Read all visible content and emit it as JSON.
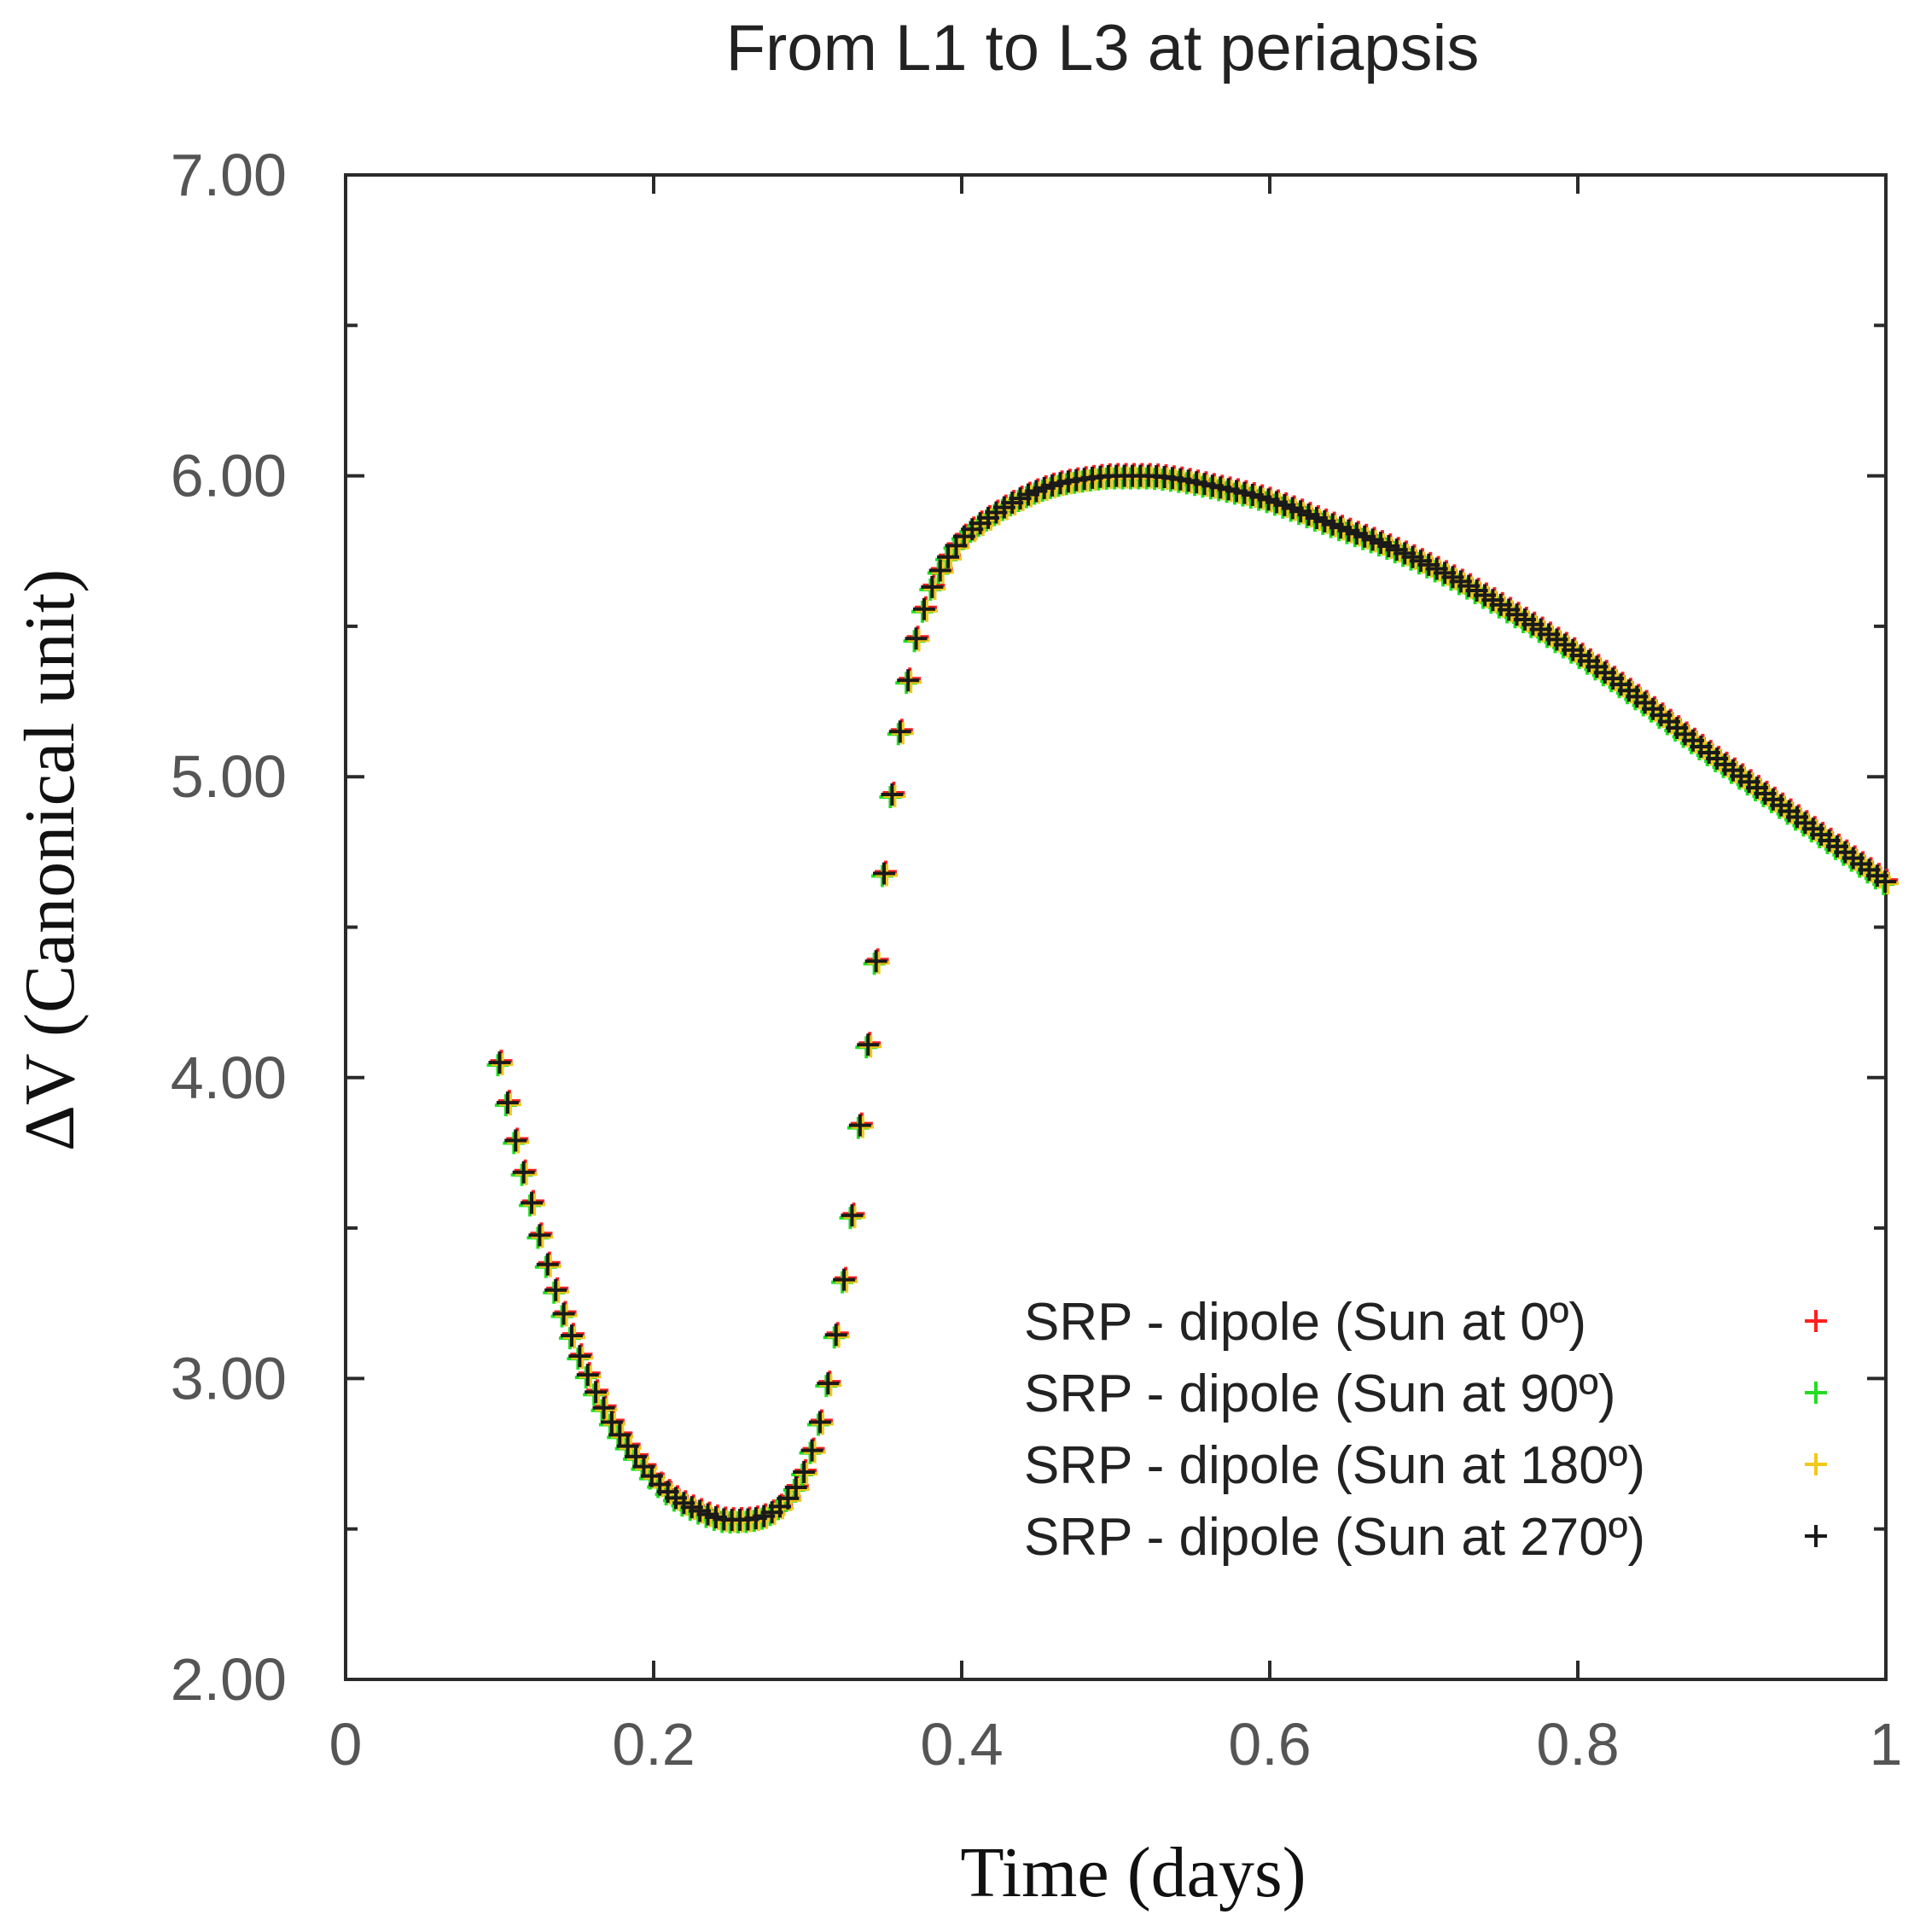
{
  "chart_data": {
    "type": "scatter",
    "title": "From L1 to L3 at periapsis",
    "xlabel": "Time (days)",
    "ylabel": "ΔV (Canonical unit)",
    "xlim": [
      0,
      1
    ],
    "ylim": [
      2.0,
      7.0
    ],
    "xticks": [
      0,
      0.2,
      0.4,
      0.6,
      0.8,
      1
    ],
    "xtick_labels": [
      "0",
      "0.2",
      "0.4",
      "0.6",
      "0.8",
      "1"
    ],
    "yticks": [
      2.0,
      3.0,
      4.0,
      5.0,
      6.0,
      7.0
    ],
    "ytick_labels": [
      "2.00",
      "3.00",
      "4.00",
      "5.00",
      "6.00",
      "7.00"
    ],
    "grid": false,
    "legend_position": "lower-right",
    "marker": "plus",
    "curve_anchors": {
      "x": [
        0.1,
        0.11,
        0.12,
        0.13,
        0.15,
        0.17,
        0.19,
        0.21,
        0.23,
        0.25,
        0.27,
        0.29,
        0.3,
        0.31,
        0.32,
        0.33,
        0.335,
        0.34,
        0.345,
        0.35,
        0.355,
        0.36,
        0.37,
        0.38,
        0.39,
        0.4,
        0.42,
        0.44,
        0.46,
        0.48,
        0.5,
        0.52,
        0.54,
        0.56,
        0.6,
        0.64,
        0.68,
        0.72,
        0.76,
        0.8,
        0.84,
        0.88,
        0.92,
        0.96,
        1.0
      ],
      "y": [
        4.05,
        3.8,
        3.6,
        3.4,
        3.1,
        2.88,
        2.73,
        2.62,
        2.56,
        2.53,
        2.54,
        2.62,
        2.72,
        2.9,
        3.2,
        3.6,
        3.9,
        4.15,
        4.42,
        4.7,
        4.95,
        5.15,
        5.45,
        5.62,
        5.72,
        5.79,
        5.87,
        5.93,
        5.97,
        5.99,
        6.0,
        6.0,
        5.99,
        5.97,
        5.92,
        5.84,
        5.76,
        5.66,
        5.54,
        5.41,
        5.26,
        5.1,
        4.95,
        4.8,
        4.65
      ]
    },
    "series": [
      {
        "name": "SRP - dipole (Sun at 0º)",
        "color": "#ff2020"
      },
      {
        "name": "SRP - dipole (Sun at 90º)",
        "color": "#22dd22"
      },
      {
        "name": "SRP - dipole (Sun at 180º)",
        "color": "#f2c81a"
      },
      {
        "name": "SRP - dipole (Sun at 270º)",
        "color": "#1a1a1a"
      }
    ],
    "sampling": {
      "x_start": 0.1,
      "x_end": 1.0,
      "step": 0.0052
    }
  }
}
